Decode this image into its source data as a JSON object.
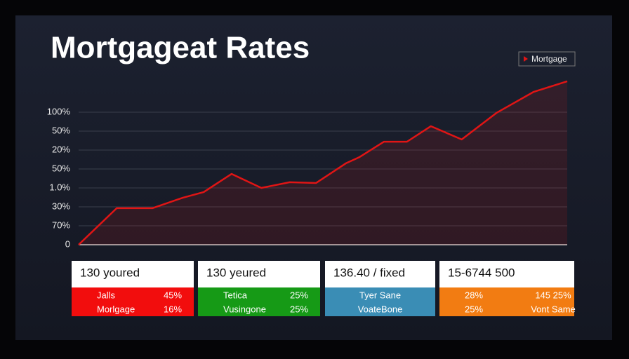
{
  "chart_data": {
    "type": "line",
    "title": "Mortgageat Rates",
    "x": [
      0,
      7.8,
      15.1,
      21.3,
      25.6,
      31.3,
      37.4,
      43.2,
      48.6,
      54.7,
      57.5,
      62.5,
      67.2,
      72.1,
      78.4,
      85.5,
      93.1,
      100
    ],
    "xlim": [
      0,
      100
    ],
    "series": [
      {
        "name": "Mortgage",
        "color": "#e01515",
        "values": [
          0,
          1.93,
          1.93,
          2.48,
          2.78,
          3.74,
          3.0,
          3.3,
          3.26,
          4.3,
          4.63,
          5.44,
          5.44,
          6.26,
          5.56,
          6.96,
          8.07,
          8.63
        ]
      }
    ],
    "ylim": [
      0,
      9
    ],
    "yticks": [
      0,
      {
        "value": 1,
        "label": "70%"
      },
      {
        "value": 2,
        "label": "30%"
      },
      {
        "value": 3,
        "label": "1.0%"
      },
      {
        "value": 4,
        "label": "50%"
      },
      {
        "value": 5,
        "label": "20%"
      },
      {
        "value": 6,
        "label": "50%"
      },
      {
        "value": 7,
        "label": "100%"
      }
    ],
    "grid": true,
    "legend": "top-right"
  },
  "cards": [
    {
      "title": "130 youred",
      "color": "#f20d0d",
      "rows": [
        [
          "Jalls",
          "45%"
        ],
        [
          "Morlgage",
          "16%"
        ]
      ]
    },
    {
      "title": "130 yeured",
      "color": "#169a16",
      "rows": [
        [
          "Tetica",
          "25%"
        ],
        [
          "Vusingone",
          "25%"
        ]
      ]
    },
    {
      "title": "136.40 / fixed",
      "color": "#3a8db5",
      "rows": [
        [
          "Tyer Sane"
        ],
        [
          "VoateBone"
        ]
      ]
    },
    {
      "title": "15-6744 500",
      "color": "#f27c12",
      "rows": [
        [
          "28%",
          "145 25%"
        ],
        [
          "25%",
          "Vont Same"
        ]
      ]
    }
  ]
}
